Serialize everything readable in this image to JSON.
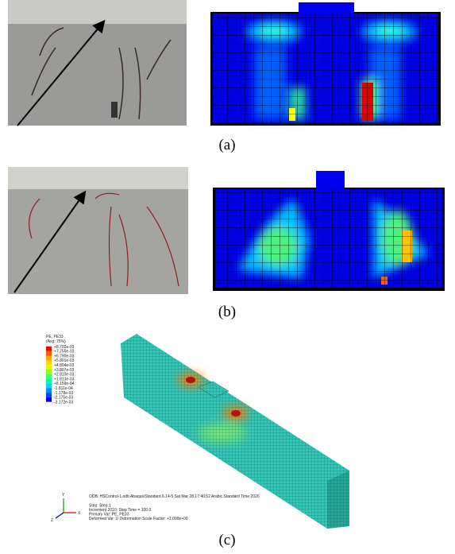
{
  "panels": [
    {
      "label": "(a)"
    },
    {
      "label": "(b)"
    },
    {
      "label": "(c)"
    }
  ],
  "legend": {
    "title": "PE, PE33",
    "subtitle": "(Avg: 75%)",
    "values": [
      "+8.702e-03",
      "+7.755e-03",
      "+6.790e-03",
      "+5.801e-03",
      "+4.804e-03",
      "+3.807e-03",
      "+2.810e-03",
      "+1.813e-03",
      "+8.159e-04",
      "-1.811e-04",
      "-1.178e-03",
      "-2.175e-03",
      "-3.172e-03"
    ]
  },
  "footer": {
    "lines": [
      "ODB: HSControl-1.odb    Abaqus/Standard 6.14-5    Sat Mar 28 17:40:52 Arabic Standard Time 2020",
      "Step: Step-1",
      "Increment    2010: Step Time =    100.0",
      "Primary Var: PE, PE33",
      "Deformed Var: U   Deformation Scale Factor: +1.000e+00"
    ]
  },
  "triad": {
    "y": "Y",
    "z": "Z",
    "x": "X"
  }
}
